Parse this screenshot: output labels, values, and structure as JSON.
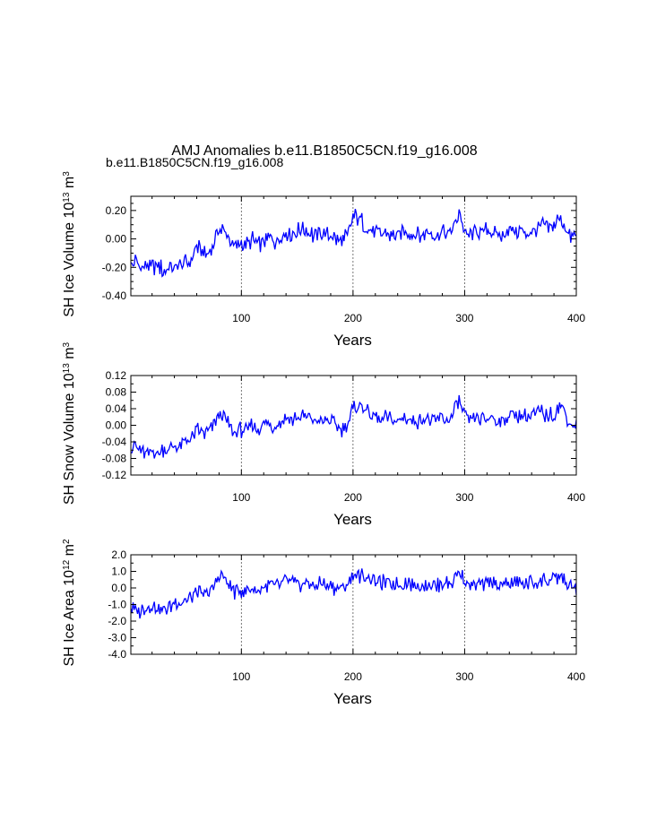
{
  "header": {
    "title": "AMJ Anomalies b.e11.B1850C5CN.f19_g16.008",
    "subtitle": "b.e11.B1850C5CN.f19_g16.008",
    "subtitle_color": "#0000ff"
  },
  "line_color": "#0000ff",
  "chart_data": [
    {
      "type": "line",
      "ylabel": "SH Ice Volume 10",
      "ylabel_exp": "13",
      "ylabel_unit": " m",
      "ylabel_unit_exp": "3",
      "xlabel": "Years",
      "xlim": [
        1,
        400
      ],
      "ylim": [
        -0.4,
        0.3
      ],
      "major_yticks": [
        -0.4,
        -0.2,
        0.0,
        0.2
      ],
      "ytick_labels": [
        "-0.40",
        "-0.20",
        "0.00",
        "0.20"
      ],
      "minor_ystep": 0.05,
      "xticks": [
        100,
        200,
        300,
        400
      ],
      "xtick_labels": [
        "100",
        "200",
        "300",
        "400"
      ],
      "vlines": [
        100,
        200,
        300
      ],
      "series": [
        {
          "name": "b.e11.B1850C5CN.f19_g16.008",
          "start_year": 1,
          "anchor_years": [
            1,
            5,
            10,
            15,
            20,
            25,
            30,
            35,
            40,
            45,
            50,
            55,
            60,
            65,
            70,
            75,
            80,
            85,
            90,
            95,
            100,
            105,
            110,
            115,
            120,
            125,
            130,
            135,
            140,
            145,
            150,
            155,
            160,
            165,
            170,
            175,
            180,
            185,
            190,
            195,
            200,
            205,
            210,
            215,
            220,
            225,
            230,
            235,
            240,
            245,
            250,
            255,
            260,
            265,
            270,
            275,
            280,
            285,
            290,
            295,
            300,
            305,
            310,
            315,
            320,
            325,
            330,
            335,
            340,
            345,
            350,
            355,
            360,
            365,
            370,
            375,
            380,
            385,
            390,
            395,
            400
          ],
          "anchor_values": [
            -0.2,
            -0.16,
            -0.2,
            -0.18,
            -0.2,
            -0.19,
            -0.22,
            -0.2,
            -0.2,
            -0.18,
            -0.17,
            -0.15,
            -0.05,
            -0.1,
            -0.12,
            -0.03,
            0.08,
            0.05,
            -0.02,
            -0.06,
            -0.04,
            -0.03,
            -0.01,
            -0.05,
            -0.01,
            0.0,
            -0.02,
            0.02,
            0.05,
            0.03,
            0.05,
            0.08,
            0.05,
            0.02,
            0.05,
            0.04,
            0.02,
            0.0,
            -0.02,
            0.02,
            0.15,
            0.15,
            0.1,
            0.08,
            0.06,
            0.03,
            0.05,
            0.02,
            0.03,
            0.05,
            0.04,
            0.03,
            0.02,
            0.04,
            0.03,
            0.02,
            0.05,
            0.03,
            0.07,
            0.2,
            0.04,
            0.02,
            0.05,
            0.04,
            0.06,
            0.05,
            0.02,
            0.03,
            0.08,
            0.06,
            0.05,
            0.04,
            0.06,
            0.07,
            0.1,
            0.07,
            0.1,
            0.15,
            0.09,
            0.0,
            0.02
          ],
          "noise_amplitude": 0.07
        }
      ]
    },
    {
      "type": "line",
      "ylabel": "SH Snow Volume 10",
      "ylabel_exp": "13",
      "ylabel_unit": " m",
      "ylabel_unit_exp": "3",
      "xlabel": "Years",
      "xlim": [
        1,
        400
      ],
      "ylim": [
        -0.12,
        0.12
      ],
      "major_yticks": [
        -0.12,
        -0.08,
        -0.04,
        0.0,
        0.04,
        0.08,
        0.12
      ],
      "ytick_labels": [
        "-0.12",
        "-0.08",
        "-0.04",
        "0.00",
        "0.04",
        "0.08",
        "0.12"
      ],
      "minor_ystep": 0.02,
      "xticks": [
        100,
        200,
        300,
        400
      ],
      "xtick_labels": [
        "100",
        "200",
        "300",
        "400"
      ],
      "vlines": [
        100,
        200,
        300
      ],
      "series": [
        {
          "name": "b.e11.B1850C5CN.f19_g16.008",
          "start_year": 1,
          "anchor_years": [
            1,
            5,
            10,
            15,
            20,
            25,
            30,
            35,
            40,
            45,
            50,
            55,
            60,
            65,
            70,
            75,
            80,
            85,
            90,
            95,
            100,
            105,
            110,
            115,
            120,
            125,
            130,
            135,
            140,
            145,
            150,
            155,
            160,
            165,
            170,
            175,
            180,
            185,
            190,
            195,
            200,
            205,
            210,
            215,
            220,
            225,
            230,
            235,
            240,
            245,
            250,
            255,
            260,
            265,
            270,
            275,
            280,
            285,
            290,
            295,
            300,
            305,
            310,
            315,
            320,
            325,
            330,
            335,
            340,
            345,
            350,
            355,
            360,
            365,
            370,
            375,
            380,
            385,
            390,
            395,
            400
          ],
          "anchor_values": [
            -0.06,
            -0.05,
            -0.06,
            -0.07,
            -0.06,
            -0.07,
            -0.06,
            -0.06,
            -0.05,
            -0.05,
            -0.04,
            -0.03,
            -0.01,
            -0.02,
            -0.02,
            0.0,
            0.03,
            0.02,
            -0.01,
            -0.02,
            -0.01,
            -0.01,
            0.0,
            -0.01,
            0.0,
            0.0,
            0.0,
            0.01,
            0.02,
            0.01,
            0.02,
            0.02,
            0.02,
            0.01,
            0.01,
            0.01,
            0.01,
            0.0,
            -0.01,
            0.0,
            0.04,
            0.05,
            0.04,
            0.03,
            0.02,
            0.01,
            0.02,
            0.01,
            0.01,
            0.02,
            0.01,
            0.01,
            0.01,
            0.02,
            0.01,
            0.01,
            0.02,
            0.01,
            0.03,
            0.06,
            0.02,
            0.01,
            0.02,
            0.01,
            0.02,
            0.02,
            0.01,
            0.01,
            0.03,
            0.02,
            0.02,
            0.02,
            0.02,
            0.03,
            0.03,
            0.02,
            0.03,
            0.05,
            0.03,
            0.0,
            0.0
          ],
          "noise_amplitude": 0.022
        }
      ]
    },
    {
      "type": "line",
      "ylabel": "SH Ice Area 10",
      "ylabel_exp": "12",
      "ylabel_unit": " m",
      "ylabel_unit_exp": "2",
      "xlabel": "Years",
      "xlim": [
        1,
        400
      ],
      "ylim": [
        -4.0,
        2.0
      ],
      "major_yticks": [
        -4.0,
        -3.0,
        -2.0,
        -1.0,
        0.0,
        1.0,
        2.0
      ],
      "ytick_labels": [
        "-4.0",
        "-3.0",
        "-2.0",
        "-1.0",
        "0.0",
        "1.0",
        "2.0"
      ],
      "minor_ystep": 0.5,
      "xticks": [
        100,
        200,
        300,
        400
      ],
      "xtick_labels": [
        "100",
        "200",
        "300",
        "400"
      ],
      "vlines": [
        100,
        200,
        300
      ],
      "series": [
        {
          "name": "b.e11.B1850C5CN.f19_g16.008",
          "start_year": 1,
          "anchor_years": [
            1,
            5,
            10,
            15,
            20,
            25,
            30,
            35,
            40,
            45,
            50,
            55,
            60,
            65,
            70,
            75,
            80,
            85,
            90,
            95,
            100,
            105,
            110,
            115,
            120,
            125,
            130,
            135,
            140,
            145,
            150,
            155,
            160,
            165,
            170,
            175,
            180,
            185,
            190,
            195,
            200,
            205,
            210,
            215,
            220,
            225,
            230,
            235,
            240,
            245,
            250,
            255,
            260,
            265,
            270,
            275,
            280,
            285,
            290,
            295,
            300,
            305,
            310,
            315,
            320,
            325,
            330,
            335,
            340,
            345,
            350,
            355,
            360,
            365,
            370,
            375,
            380,
            385,
            390,
            395,
            400
          ],
          "anchor_values": [
            -1.2,
            -1.3,
            -1.4,
            -1.2,
            -1.1,
            -1.2,
            -1.3,
            -1.1,
            -0.9,
            -0.8,
            -0.7,
            -0.6,
            -0.3,
            -0.4,
            -0.3,
            0.0,
            0.8,
            0.6,
            0.0,
            -0.3,
            -0.2,
            -0.1,
            0.0,
            -0.2,
            0.1,
            0.2,
            0.0,
            0.2,
            0.4,
            0.3,
            0.3,
            0.2,
            0.3,
            0.1,
            0.3,
            0.2,
            0.1,
            0.0,
            0.0,
            0.2,
            0.7,
            0.8,
            0.7,
            0.6,
            0.4,
            0.3,
            0.4,
            0.2,
            0.2,
            0.3,
            0.3,
            0.2,
            0.1,
            0.3,
            0.2,
            0.1,
            0.3,
            0.2,
            0.4,
            0.9,
            0.4,
            0.2,
            0.3,
            0.2,
            0.3,
            0.3,
            0.2,
            0.2,
            0.4,
            0.3,
            0.3,
            0.2,
            0.3,
            0.4,
            0.5,
            0.4,
            0.5,
            0.7,
            0.4,
            0.0,
            0.1
          ],
          "noise_amplitude": 0.55
        }
      ]
    }
  ]
}
